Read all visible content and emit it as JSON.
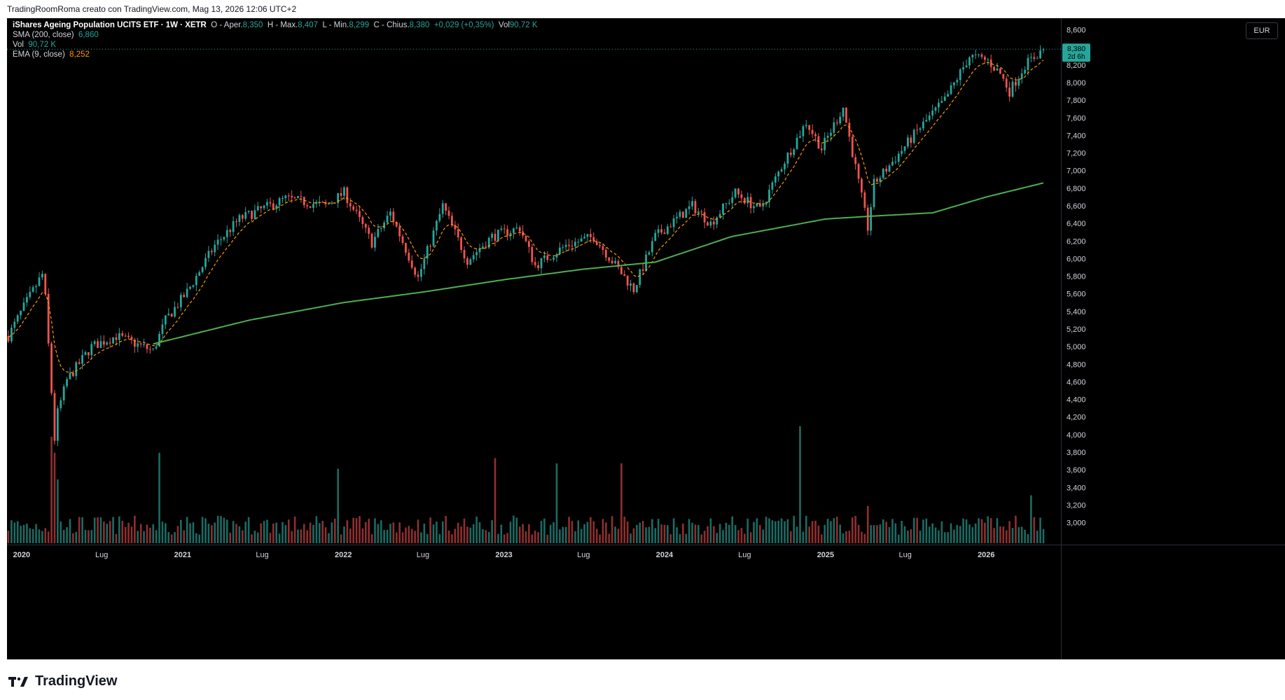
{
  "header": {
    "text": "TradingRoomRoma creato con TradingView.com, Mag 13, 2026 12:06 UTC+2"
  },
  "legend": {
    "symbol": "iShares Ageing Population UCITS ETF · 1W · XETR",
    "o_label": "O - Aper.",
    "o_value": "8,350",
    "h_label": "H - Max.",
    "h_value": "8,407",
    "l_label": "L - Min.",
    "l_value": "8,299",
    "c_label": "C - Chius.",
    "c_value": "8,380",
    "change": "+0,029 (+0,35%)",
    "vol_label": "Vol",
    "vol_value": "90,72 K",
    "sma_label": "SMA (200, close)",
    "sma_value": "6,860",
    "vol2_label": "Vol",
    "vol2_value": "90,72 K",
    "ema_label": "EMA (9, close)",
    "ema_value": "8,252"
  },
  "price_scale": {
    "currency": "EUR",
    "last_price": "8,380",
    "countdown": "2d 6h"
  },
  "brand": {
    "name": "TradingView"
  },
  "colors": {
    "background": "#000000",
    "up": "#26a69a",
    "down": "#ef5350",
    "vol_up": "#1b6b63",
    "vol_down": "#8f2f2f",
    "sma": "#4caf50",
    "ema": "#ff9800",
    "axis_text": "#d1d4dc"
  },
  "chart_data": {
    "type": "candlestick",
    "title": "iShares Ageing Population UCITS ETF · 1W · XETR",
    "timeframe": "1W",
    "currency": "EUR",
    "x_range": [
      "2019-12-02",
      "2026-05-11"
    ],
    "x_ticks": [
      {
        "date": "2020-01-01",
        "label": "2020",
        "bold": true
      },
      {
        "date": "2020-07-01",
        "label": "Lug",
        "bold": false
      },
      {
        "date": "2021-01-01",
        "label": "2021",
        "bold": true
      },
      {
        "date": "2021-07-01",
        "label": "Lug",
        "bold": false
      },
      {
        "date": "2022-01-01",
        "label": "2022",
        "bold": true
      },
      {
        "date": "2022-07-01",
        "label": "Lug",
        "bold": false
      },
      {
        "date": "2023-01-01",
        "label": "2023",
        "bold": true
      },
      {
        "date": "2023-07-01",
        "label": "Lug",
        "bold": false
      },
      {
        "date": "2024-01-01",
        "label": "2024",
        "bold": true
      },
      {
        "date": "2024-07-01",
        "label": "Lug",
        "bold": false
      },
      {
        "date": "2025-01-01",
        "label": "2025",
        "bold": true
      },
      {
        "date": "2025-07-01",
        "label": "Lug",
        "bold": false
      },
      {
        "date": "2026-01-01",
        "label": "2026",
        "bold": true
      }
    ],
    "y_range": [
      2.75,
      8.7
    ],
    "y_ticks": [
      "8,600",
      "8,400",
      "8,200",
      "8,000",
      "7,800",
      "7,600",
      "7,400",
      "7,200",
      "7,000",
      "6,800",
      "6,600",
      "6,400",
      "6,200",
      "6,000",
      "5,800",
      "5,600",
      "5,400",
      "5,200",
      "5,000",
      "4,800",
      "4,600",
      "4,400",
      "4,200",
      "4,000",
      "3,800",
      "3,600",
      "3,400",
      "3,200",
      "3,000"
    ],
    "price_path": [
      [
        "2019-12-02",
        5.12
      ],
      [
        "2020-01-06",
        5.45
      ],
      [
        "2020-02-17",
        5.82
      ],
      [
        "2020-02-24",
        5.55
      ],
      [
        "2020-03-16",
        3.95
      ],
      [
        "2020-03-23",
        4.25
      ],
      [
        "2020-04-13",
        4.62
      ],
      [
        "2020-06-08",
        5.0
      ],
      [
        "2020-08-03",
        5.12
      ],
      [
        "2020-10-26",
        4.95
      ],
      [
        "2020-11-23",
        5.3
      ],
      [
        "2021-01-11",
        5.62
      ],
      [
        "2021-03-15",
        6.15
      ],
      [
        "2021-05-10",
        6.45
      ],
      [
        "2021-08-23",
        6.68
      ],
      [
        "2021-11-22",
        6.6
      ],
      [
        "2022-01-03",
        6.75
      ],
      [
        "2022-03-07",
        6.18
      ],
      [
        "2022-04-18",
        6.52
      ],
      [
        "2022-06-20",
        5.78
      ],
      [
        "2022-08-15",
        6.6
      ],
      [
        "2022-10-10",
        5.98
      ],
      [
        "2022-12-05",
        6.25
      ],
      [
        "2023-02-06",
        6.35
      ],
      [
        "2023-03-13",
        5.92
      ],
      [
        "2023-05-22",
        6.15
      ],
      [
        "2023-07-24",
        6.25
      ],
      [
        "2023-10-23",
        5.65
      ],
      [
        "2023-12-11",
        6.25
      ],
      [
        "2024-03-04",
        6.6
      ],
      [
        "2024-04-15",
        6.4
      ],
      [
        "2024-06-10",
        6.75
      ],
      [
        "2024-08-05",
        6.55
      ],
      [
        "2024-09-23",
        7.05
      ],
      [
        "2024-11-18",
        7.55
      ],
      [
        "2024-12-23",
        7.25
      ],
      [
        "2025-02-10",
        7.72
      ],
      [
        "2025-04-07",
        6.35
      ],
      [
        "2025-04-21",
        6.85
      ],
      [
        "2025-06-02",
        7.1
      ],
      [
        "2025-07-28",
        7.45
      ],
      [
        "2025-09-29",
        7.8
      ],
      [
        "2025-11-24",
        8.3
      ],
      [
        "2026-01-05",
        8.25
      ],
      [
        "2026-02-02",
        8.1
      ],
      [
        "2026-02-23",
        7.9
      ],
      [
        "2026-03-30",
        8.2
      ],
      [
        "2026-05-11",
        8.38
      ]
    ],
    "sma_200": [
      [
        "2020-10-26",
        5.03
      ],
      [
        "2021-06-01",
        5.3
      ],
      [
        "2022-01-01",
        5.5
      ],
      [
        "2022-07-01",
        5.62
      ],
      [
        "2023-01-01",
        5.76
      ],
      [
        "2023-07-01",
        5.88
      ],
      [
        "2023-12-11",
        5.96
      ],
      [
        "2024-06-01",
        6.25
      ],
      [
        "2025-01-01",
        6.45
      ],
      [
        "2025-04-07",
        6.48
      ],
      [
        "2025-09-01",
        6.52
      ],
      [
        "2026-01-01",
        6.7
      ],
      [
        "2026-05-11",
        6.86
      ]
    ],
    "series": [
      {
        "name": "SMA (200, close)",
        "last": 6.86
      },
      {
        "name": "Vol",
        "last": "90,72 K"
      },
      {
        "name": "EMA (9, close)",
        "last": 8.252
      }
    ],
    "ohlc_last": {
      "open": 8.35,
      "high": 8.407,
      "low": 8.299,
      "close": 8.38,
      "change": 0.029,
      "change_pct": 0.35
    },
    "volume_spikes": [
      [
        "2020-03-09",
        1.0
      ],
      [
        "2020-03-16",
        0.85
      ],
      [
        "2020-03-23",
        0.6
      ],
      [
        "2020-11-09",
        0.85
      ],
      [
        "2021-12-20",
        0.7
      ],
      [
        "2022-12-12",
        0.8
      ],
      [
        "2023-05-01",
        0.75
      ],
      [
        "2023-09-25",
        0.75
      ],
      [
        "2024-11-04",
        1.1
      ],
      [
        "2025-04-07",
        0.35
      ],
      [
        "2026-04-13",
        0.45
      ]
    ],
    "grid": false,
    "legend_position": "top-left"
  }
}
